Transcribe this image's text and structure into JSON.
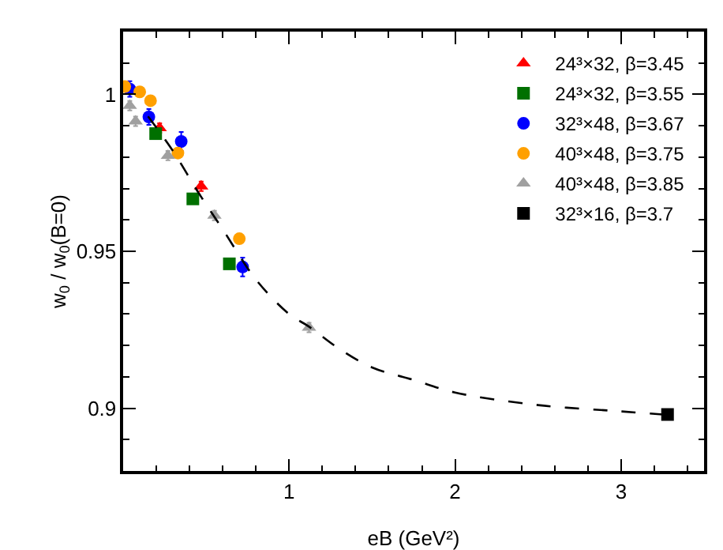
{
  "chart_data": {
    "type": "scatter",
    "xlabel": "eB (GeV²)",
    "ylabel": "w$_{0}$ / w$_{0}$(B=0)",
    "xlim": [
      0,
      3.5
    ],
    "xticks": [
      1,
      2,
      3
    ],
    "ylim": [
      0.88,
      1.02
    ],
    "yticks": [
      0.9,
      0.95,
      1
    ],
    "grid": false,
    "legend": "top right",
    "series": [
      {
        "name": "24³×32, β=3.45",
        "color": "#ff0000",
        "marker": "triangle",
        "x": [
          0.22,
          0.47
        ],
        "values": [
          0.9893,
          0.9707
        ],
        "errors": [
          0.0015,
          0.0015
        ]
      },
      {
        "name": "24³×32, β=3.55",
        "color": "#007000",
        "marker": "square",
        "x": [
          0.196,
          0.42,
          0.64
        ],
        "values": [
          0.9875,
          0.9667,
          0.946
        ],
        "errors": [
          0.0015,
          0.0015,
          0.0015
        ]
      },
      {
        "name": "32³×48, β=3.67",
        "color": "#0000ff",
        "marker": "circle",
        "x": [
          0.04,
          0.155,
          0.35,
          0.72
        ],
        "values": [
          1.0017,
          0.9928,
          0.985,
          0.945
        ],
        "errors": [
          0.0025,
          0.0025,
          0.003,
          0.003
        ]
      },
      {
        "name": "40³×48, β=3.75",
        "color": "#ffa000",
        "marker": "circle",
        "x": [
          0.01,
          0.1,
          0.165,
          0.33,
          0.7
        ],
        "values": [
          1.0025,
          1.0008,
          0.998,
          0.9813,
          0.954
        ],
        "errors": [
          0.0015,
          0.0015,
          0.0015,
          0.0015,
          0.0015
        ]
      },
      {
        "name": "40³×48, β=3.85",
        "color": "#a0a0a0",
        "marker": "triangle",
        "x": [
          0.04,
          0.075,
          0.27,
          0.55,
          1.12
        ],
        "values": [
          0.9964,
          0.9914,
          0.9805,
          0.9614,
          0.9257
        ],
        "errors": [
          0.0015,
          0.0015,
          0.0015,
          0.0015,
          0.0015
        ]
      },
      {
        "name": "32³×16, β=3.7",
        "color": "#000000",
        "marker": "square",
        "x": [
          3.28
        ],
        "values": [
          0.898
        ],
        "errors": [
          0.0015
        ]
      },
      {
        "type": "line",
        "line_style": "dashed",
        "color": "#000000",
        "marker": "none",
        "x": [
          0.15,
          0.3,
          0.45,
          0.6,
          0.8,
          1.0,
          1.12,
          1.3,
          1.5,
          1.75,
          2.0,
          2.5,
          3.0,
          3.25
        ],
        "values": [
          0.993,
          0.982,
          0.969,
          0.957,
          0.941,
          0.93,
          0.926,
          0.919,
          0.913,
          0.909,
          0.905,
          0.901,
          0.899,
          0.898
        ]
      }
    ]
  }
}
